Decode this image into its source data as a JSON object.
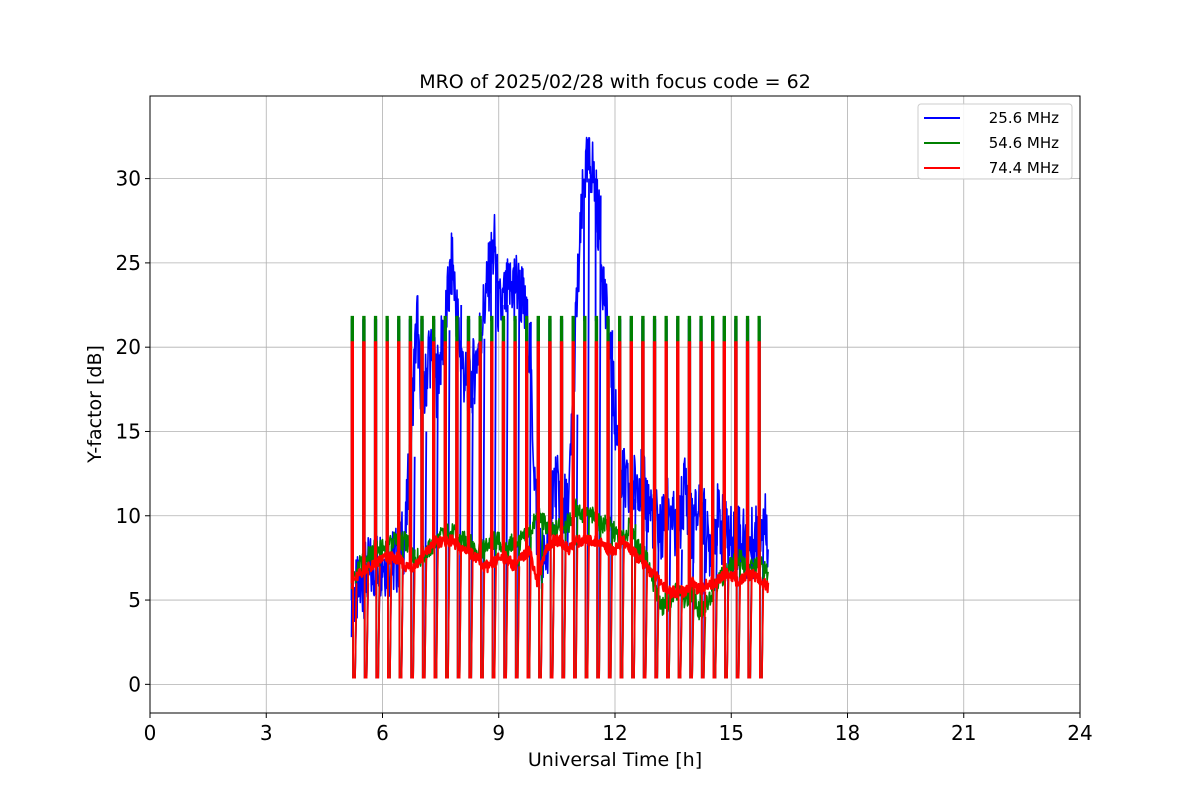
{
  "chart_data": {
    "type": "line",
    "title": "MRO of 2025/02/28 with focus code = 62",
    "xlabel": "Universal Time [h]",
    "ylabel": "Y-factor [dB]",
    "xlim": [
      0,
      24
    ],
    "ylim": [
      -1.7,
      34.9
    ],
    "xticks": [
      0,
      3,
      6,
      9,
      12,
      15,
      18,
      21,
      24
    ],
    "yticks": [
      0,
      5,
      10,
      15,
      20,
      25,
      30
    ],
    "grid": true,
    "legend_position": "top-right",
    "calibration_cycle": {
      "start": 5.2,
      "end": 15.75,
      "period": 0.3,
      "high_levels": {
        "25.6 MHz": 21.6,
        "54.6 MHz": 21.8,
        "74.4 MHz": 20.3
      },
      "low_level": 0.4
    },
    "series": [
      {
        "name": "25.6 MHz",
        "color": "#0000ff",
        "x": [
          5.2,
          5.4,
          5.6,
          5.8,
          6.0,
          6.2,
          6.4,
          6.6,
          6.8,
          6.9,
          7.0,
          7.2,
          7.4,
          7.6,
          7.8,
          8.0,
          8.2,
          8.4,
          8.6,
          8.8,
          8.9,
          9.0,
          9.2,
          9.4,
          9.6,
          9.8,
          10.0,
          10.2,
          10.4,
          10.6,
          10.8,
          11.0,
          11.2,
          11.4,
          11.5,
          11.6,
          11.8,
          12.0,
          12.2,
          12.4,
          12.6,
          12.8,
          13.0,
          13.2,
          13.4,
          13.6,
          13.8,
          14.0,
          14.2,
          14.4,
          14.6,
          14.8,
          15.0,
          15.2,
          15.4,
          15.6,
          15.8,
          15.95
        ],
        "y": [
          5.0,
          5.5,
          6.5,
          7.0,
          7.5,
          7.0,
          7.5,
          9.0,
          18.0,
          22.0,
          15.0,
          20.0,
          18.0,
          21.0,
          25.0,
          20.0,
          17.0,
          19.0,
          22.0,
          25.0,
          26.0,
          22.0,
          23.0,
          24.0,
          23.0,
          20.0,
          8.0,
          7.0,
          12.0,
          11.0,
          10.0,
          22.0,
          30.0,
          31.0,
          29.0,
          27.0,
          21.0,
          16.0,
          12.0,
          11.0,
          12.5,
          11.0,
          10.0,
          9.0,
          11.0,
          8.0,
          12.0,
          9.0,
          11.0,
          8.0,
          10.0,
          9.0,
          8.5,
          9.0,
          8.0,
          8.5,
          10.0,
          9.0
        ]
      },
      {
        "name": "54.6 MHz",
        "color": "#008000",
        "x": [
          5.2,
          5.4,
          5.6,
          5.8,
          6.0,
          6.2,
          6.4,
          6.6,
          6.8,
          7.0,
          7.2,
          7.4,
          7.6,
          7.8,
          8.0,
          8.2,
          8.4,
          8.6,
          8.8,
          9.0,
          9.2,
          9.4,
          9.6,
          9.8,
          10.0,
          10.2,
          10.4,
          10.6,
          10.8,
          11.0,
          11.2,
          11.4,
          11.6,
          11.8,
          12.0,
          12.2,
          12.4,
          12.6,
          12.8,
          13.0,
          13.2,
          13.4,
          13.6,
          13.8,
          14.0,
          14.2,
          14.4,
          14.6,
          14.8,
          15.0,
          15.2,
          15.4,
          15.6,
          15.8,
          15.95
        ],
        "y": [
          6.0,
          7.0,
          7.5,
          8.0,
          8.0,
          8.5,
          8.5,
          8.5,
          7.5,
          7.5,
          8.0,
          8.5,
          9.0,
          9.0,
          8.5,
          8.5,
          8.0,
          8.0,
          8.5,
          8.5,
          8.0,
          8.5,
          8.5,
          9.0,
          10.0,
          9.5,
          9.0,
          9.5,
          9.5,
          10.5,
          10.0,
          10.0,
          9.5,
          9.5,
          9.0,
          8.5,
          9.5,
          8.0,
          7.5,
          6.0,
          4.5,
          5.0,
          5.5,
          5.0,
          5.5,
          4.0,
          5.0,
          6.0,
          6.5,
          7.0,
          7.5,
          7.0,
          7.0,
          7.0,
          6.5
        ]
      },
      {
        "name": "74.4 MHz",
        "color": "#ff0000",
        "x": [
          5.2,
          5.4,
          5.6,
          5.8,
          6.0,
          6.2,
          6.4,
          6.6,
          6.8,
          7.0,
          7.2,
          7.4,
          7.6,
          7.8,
          8.0,
          8.2,
          8.4,
          8.6,
          8.8,
          9.0,
          9.2,
          9.4,
          9.6,
          9.8,
          10.0,
          10.2,
          10.4,
          10.6,
          10.8,
          11.0,
          11.2,
          11.4,
          11.6,
          11.8,
          12.0,
          12.2,
          12.4,
          12.6,
          12.8,
          13.0,
          13.2,
          13.4,
          13.6,
          13.8,
          14.0,
          14.2,
          14.4,
          14.6,
          14.8,
          15.0,
          15.2,
          15.4,
          15.6,
          15.8,
          15.95
        ],
        "y": [
          6.0,
          6.5,
          7.0,
          7.0,
          7.5,
          7.5,
          7.5,
          7.0,
          7.0,
          7.5,
          8.0,
          8.5,
          8.5,
          8.5,
          8.0,
          8.0,
          7.5,
          7.0,
          7.0,
          7.5,
          7.5,
          7.0,
          7.5,
          8.0,
          6.0,
          8.0,
          8.5,
          8.5,
          8.0,
          8.5,
          8.5,
          8.5,
          8.5,
          8.0,
          8.0,
          8.5,
          8.0,
          7.5,
          7.0,
          6.5,
          6.0,
          5.5,
          5.5,
          5.5,
          6.0,
          5.5,
          6.0,
          6.0,
          6.5,
          6.5,
          6.0,
          6.5,
          6.5,
          6.0,
          5.8
        ]
      }
    ]
  }
}
